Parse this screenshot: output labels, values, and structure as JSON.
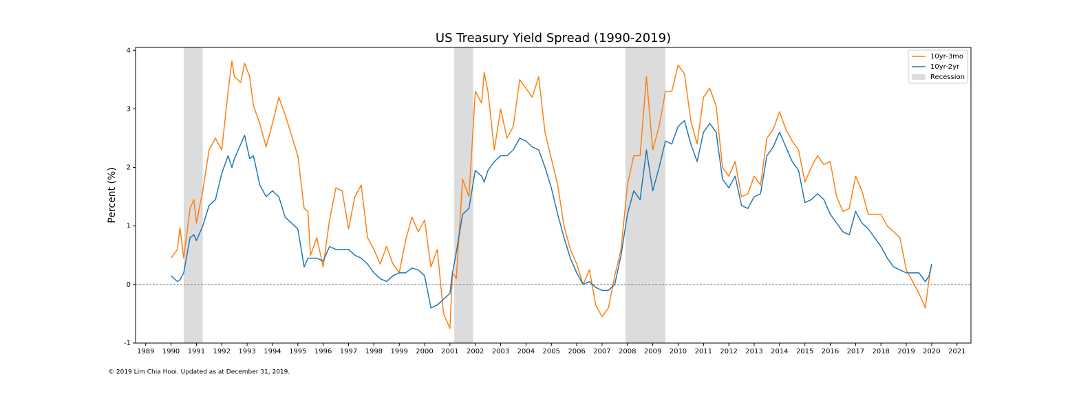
{
  "chart_data": {
    "type": "line",
    "title": "US Treasury Yield Spread (1990-2019)",
    "ylabel": "Percent (%)",
    "footnote": "© 2019 Lim Chia Hooi. Updated as at December 31, 2019.",
    "legend": "upper right",
    "grid": false,
    "xlim": [
      1988.6,
      2021.55
    ],
    "ylim": [
      -1,
      4.05
    ],
    "xticks": [
      1989,
      1990,
      1991,
      1992,
      1993,
      1994,
      1995,
      1996,
      1997,
      1998,
      1999,
      2000,
      2001,
      2002,
      2003,
      2004,
      2005,
      2006,
      2007,
      2008,
      2009,
      2010,
      2011,
      2012,
      2013,
      2014,
      2015,
      2016,
      2017,
      2018,
      2019,
      2020,
      2021
    ],
    "yticks": [
      -1,
      0,
      1,
      2,
      3,
      4
    ],
    "reference_line": {
      "y": 0,
      "color": "#808080"
    },
    "shaded": {
      "name": "Recession",
      "color": "#dcdcdc",
      "ranges": [
        [
          1990.5,
          1991.25
        ],
        [
          2001.17,
          2001.92
        ],
        [
          2007.92,
          2009.5
        ]
      ]
    },
    "x": [
      1990,
      1990.25,
      1990.35,
      1990.5,
      1990.75,
      1990.9,
      1991,
      1991.25,
      1991.5,
      1991.75,
      1992,
      1992.25,
      1992.4,
      1992.5,
      1992.75,
      1992.9,
      1993.1,
      1993.25,
      1993.5,
      1993.75,
      1994,
      1994.25,
      1994.5,
      1994.75,
      1995,
      1995.25,
      1995.4,
      1995.5,
      1995.75,
      1996,
      1996.25,
      1996.5,
      1996.75,
      1997,
      1997.25,
      1997.5,
      1997.75,
      1998,
      1998.25,
      1998.5,
      1998.75,
      1999,
      1999.25,
      1999.5,
      1999.75,
      2000,
      2000.25,
      2000.5,
      2000.75,
      2001,
      2001.1,
      2001.25,
      2001.5,
      2001.75,
      2002,
      2002.25,
      2002.35,
      2002.5,
      2002.75,
      2003,
      2003.25,
      2003.5,
      2003.75,
      2004,
      2004.25,
      2004.5,
      2004.75,
      2005,
      2005.25,
      2005.5,
      2005.75,
      2006,
      2006.25,
      2006.5,
      2006.75,
      2007,
      2007.25,
      2007.5,
      2007.75,
      2008,
      2008.25,
      2008.5,
      2008.75,
      2009,
      2009.25,
      2009.5,
      2009.75,
      2010,
      2010.25,
      2010.5,
      2010.75,
      2011,
      2011.25,
      2011.5,
      2011.75,
      2012,
      2012.25,
      2012.5,
      2012.75,
      2013,
      2013.25,
      2013.5,
      2013.75,
      2014,
      2014.25,
      2014.5,
      2014.75,
      2015,
      2015.25,
      2015.5,
      2015.75,
      2016,
      2016.25,
      2016.5,
      2016.75,
      2017,
      2017.25,
      2017.5,
      2017.75,
      2018,
      2018.25,
      2018.5,
      2018.75,
      2019,
      2019.25,
      2019.5,
      2019.75,
      2019.9,
      2020
    ],
    "series": [
      {
        "name": "10yr-3mo",
        "color": "#ff7f0e",
        "values": [
          0.45,
          0.6,
          0.97,
          0.45,
          1.3,
          1.45,
          1.05,
          1.6,
          2.3,
          2.5,
          2.3,
          3.3,
          3.82,
          3.55,
          3.45,
          3.78,
          3.55,
          3.05,
          2.75,
          2.35,
          2.75,
          3.2,
          2.9,
          2.55,
          2.2,
          1.3,
          1.25,
          0.5,
          0.8,
          0.3,
          1.1,
          1.65,
          1.6,
          0.95,
          1.5,
          1.7,
          0.8,
          0.6,
          0.35,
          0.65,
          0.35,
          0.2,
          0.75,
          1.15,
          0.9,
          1.1,
          0.3,
          0.6,
          -0.5,
          -0.75,
          0.2,
          0.1,
          1.8,
          1.5,
          3.3,
          3.1,
          3.62,
          3.3,
          2.3,
          3.0,
          2.5,
          2.7,
          3.5,
          3.35,
          3.2,
          3.55,
          2.6,
          2.15,
          1.7,
          1.0,
          0.6,
          0.35,
          0.0,
          0.25,
          -0.35,
          -0.55,
          -0.4,
          0.15,
          0.6,
          1.7,
          2.2,
          2.2,
          3.55,
          2.3,
          2.7,
          3.3,
          3.3,
          3.75,
          3.6,
          2.8,
          2.4,
          3.2,
          3.35,
          3.05,
          2.0,
          1.85,
          2.1,
          1.5,
          1.55,
          1.85,
          1.7,
          2.5,
          2.65,
          2.95,
          2.65,
          2.45,
          2.3,
          1.75,
          2.0,
          2.2,
          2.05,
          2.1,
          1.5,
          1.25,
          1.3,
          1.85,
          1.6,
          1.2,
          1.2,
          1.2,
          1.0,
          0.9,
          0.8,
          0.25,
          0.05,
          -0.15,
          -0.4,
          0.1,
          0.35
        ]
      },
      {
        "name": "10yr-2yr",
        "color": "#1f77b4",
        "values": [
          0.15,
          0.05,
          0.08,
          0.2,
          0.8,
          0.85,
          0.75,
          1.0,
          1.35,
          1.45,
          1.9,
          2.2,
          2.0,
          2.15,
          2.4,
          2.55,
          2.15,
          2.2,
          1.7,
          1.5,
          1.6,
          1.5,
          1.15,
          1.05,
          0.95,
          0.3,
          0.45,
          0.45,
          0.45,
          0.4,
          0.65,
          0.6,
          0.6,
          0.6,
          0.5,
          0.45,
          0.35,
          0.2,
          0.1,
          0.05,
          0.15,
          0.2,
          0.2,
          0.28,
          0.25,
          0.15,
          -0.4,
          -0.35,
          -0.25,
          -0.15,
          0.2,
          0.55,
          1.2,
          1.3,
          1.95,
          1.85,
          1.75,
          1.95,
          2.1,
          2.2,
          2.2,
          2.3,
          2.5,
          2.45,
          2.35,
          2.3,
          2.0,
          1.65,
          1.2,
          0.8,
          0.45,
          0.2,
          0.0,
          0.05,
          -0.05,
          -0.1,
          -0.1,
          0.0,
          0.5,
          1.2,
          1.6,
          1.45,
          2.3,
          1.6,
          2.0,
          2.45,
          2.4,
          2.7,
          2.8,
          2.4,
          2.1,
          2.6,
          2.75,
          2.6,
          1.8,
          1.65,
          1.85,
          1.35,
          1.3,
          1.5,
          1.55,
          2.2,
          2.35,
          2.6,
          2.35,
          2.1,
          1.95,
          1.4,
          1.45,
          1.55,
          1.45,
          1.2,
          1.05,
          0.9,
          0.85,
          1.25,
          1.05,
          0.95,
          0.8,
          0.65,
          0.45,
          0.3,
          0.25,
          0.2,
          0.2,
          0.2,
          0.05,
          0.15,
          0.35
        ]
      }
    ]
  }
}
